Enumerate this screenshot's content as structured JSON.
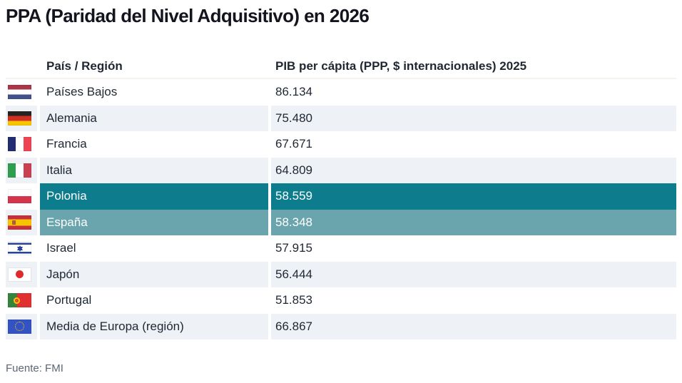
{
  "title": "PPA (Paridad del Nivel Adquisitivo) en 2026",
  "source": "Fuente: FMI",
  "colors": {
    "highlight_dark": "#0d7c8c",
    "highlight_light": "#6aa5ad",
    "stripe": "#eef1f6",
    "header_underline": "#f6f2ee",
    "text": "#1f2733",
    "source_text": "#5c6674"
  },
  "table": {
    "headers": {
      "country": "País / Región",
      "value": "PIB per cápita (PPP, $ internacionales) 2025"
    },
    "rows": [
      {
        "country": "Países Bajos",
        "value": "86.134",
        "flag_code": "nl",
        "flag_icon": "flag-netherlands-icon",
        "highlight": ""
      },
      {
        "country": "Alemania",
        "value": "75.480",
        "flag_code": "de",
        "flag_icon": "flag-germany-icon",
        "highlight": ""
      },
      {
        "country": "Francia",
        "value": "67.671",
        "flag_code": "fr",
        "flag_icon": "flag-france-icon",
        "highlight": ""
      },
      {
        "country": "Italia",
        "value": "64.809",
        "flag_code": "it",
        "flag_icon": "flag-italy-icon",
        "highlight": ""
      },
      {
        "country": "Polonia",
        "value": "58.559",
        "flag_code": "pl",
        "flag_icon": "flag-poland-icon",
        "highlight": "dark"
      },
      {
        "country": "España",
        "value": "58.348",
        "flag_code": "es",
        "flag_icon": "flag-spain-icon",
        "highlight": "light"
      },
      {
        "country": "Israel",
        "value": "57.915",
        "flag_code": "il",
        "flag_icon": "flag-israel-icon",
        "highlight": ""
      },
      {
        "country": "Japón",
        "value": "56.444",
        "flag_code": "jp",
        "flag_icon": "flag-japan-icon",
        "highlight": ""
      },
      {
        "country": "Portugal",
        "value": "51.853",
        "flag_code": "pt",
        "flag_icon": "flag-portugal-icon",
        "highlight": ""
      },
      {
        "country": "Media de Europa (región)",
        "value": "66.867",
        "flag_code": "eu",
        "flag_icon": "flag-european-union-icon",
        "highlight": ""
      }
    ]
  },
  "chart_data": {
    "type": "table",
    "title": "PPA (Paridad del Nivel Adquisitivo) en 2026",
    "columns": [
      "País / Región",
      "PIB per cápita (PPP, $ internacionales) 2025"
    ],
    "rows": [
      [
        "Países Bajos",
        86134
      ],
      [
        "Alemania",
        75480
      ],
      [
        "Francia",
        67671
      ],
      [
        "Italia",
        64809
      ],
      [
        "Polonia",
        58559
      ],
      [
        "España",
        58348
      ],
      [
        "Israel",
        57915
      ],
      [
        "Japón",
        56444
      ],
      [
        "Portugal",
        51853
      ],
      [
        "Media de Europa (región)",
        66867
      ]
    ],
    "highlighted_rows": [
      "Polonia",
      "España"
    ],
    "number_format": "thousands separated by dot",
    "source": "Fuente: FMI"
  }
}
